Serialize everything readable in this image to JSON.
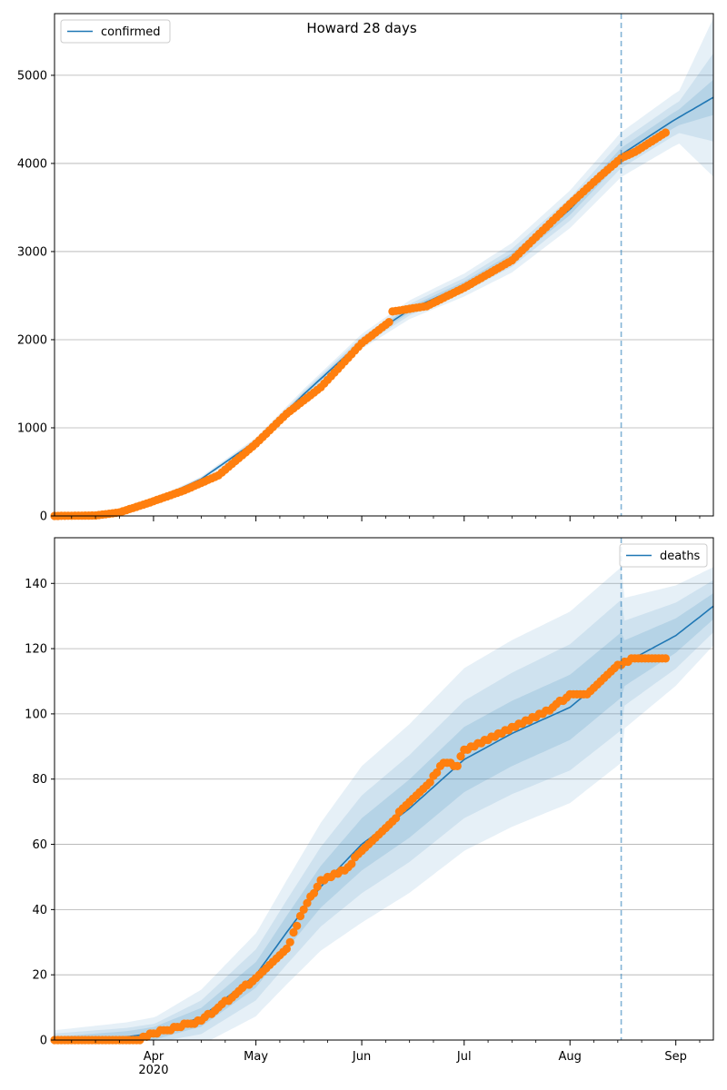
{
  "figure": {
    "title": "Howard 28 days"
  },
  "colors": {
    "model_line": "#1f77b4",
    "observed_points": "#ff7f0e",
    "band": "#1f77b4",
    "forecast_marker": "#1f77b4",
    "grid": "#b0b0b0"
  },
  "chart_data": [
    {
      "type": "line",
      "title": "Howard 28 days",
      "legend": {
        "label": "confirmed",
        "position": "top-left"
      },
      "x_axis": {
        "type": "date",
        "range": [
          "2020-03-03",
          "2020-09-12"
        ],
        "tick_labels": []
      },
      "y_axis": {
        "range": [
          0,
          5700
        ],
        "ticks": [
          0,
          1000,
          2000,
          3000,
          4000,
          5000
        ]
      },
      "grid": "horizontal",
      "forecast_start": "2020-08-16",
      "model": {
        "name": "confirmed",
        "knots": [
          [
            "2020-03-03",
            0
          ],
          [
            "2020-03-15",
            8
          ],
          [
            "2020-03-22",
            60
          ],
          [
            "2020-04-01",
            170
          ],
          [
            "2020-04-15",
            420
          ],
          [
            "2020-05-01",
            850
          ],
          [
            "2020-05-15",
            1380
          ],
          [
            "2020-06-01",
            1980
          ],
          [
            "2020-06-15",
            2340
          ],
          [
            "2020-07-01",
            2620
          ],
          [
            "2020-07-15",
            2930
          ],
          [
            "2020-08-01",
            3480
          ],
          [
            "2020-08-16",
            4100
          ],
          [
            "2020-08-31",
            4480
          ],
          [
            "2020-09-12",
            4750
          ]
        ],
        "bands": [
          {
            "spread": [
              [
                0,
                0
              ],
              [
                60,
                40
              ],
              [
                120,
                130
              ],
              [
                183,
                300
              ],
              [
                193,
                900
              ]
            ]
          },
          {
            "spread": [
              [
                0,
                0
              ],
              [
                60,
                25
              ],
              [
                120,
                80
              ],
              [
                183,
                180
              ],
              [
                193,
                500
              ]
            ]
          },
          {
            "spread": [
              [
                0,
                0
              ],
              [
                60,
                12
              ],
              [
                120,
                40
              ],
              [
                183,
                90
              ],
              [
                193,
                200
              ]
            ]
          }
        ]
      },
      "observed": {
        "name": "observed",
        "knots": [
          [
            "2020-03-03",
            0
          ],
          [
            "2020-03-15",
            5
          ],
          [
            "2020-03-22",
            40
          ],
          [
            "2020-03-30",
            140
          ],
          [
            "2020-04-10",
            290
          ],
          [
            "2020-04-20",
            460
          ],
          [
            "2020-05-01",
            820
          ],
          [
            "2020-05-10",
            1160
          ],
          [
            "2020-05-20",
            1460
          ],
          [
            "2020-06-01",
            1960
          ],
          [
            "2020-06-09",
            2200
          ],
          [
            "2020-06-10",
            2320
          ],
          [
            "2020-06-20",
            2380
          ],
          [
            "2020-07-01",
            2590
          ],
          [
            "2020-07-15",
            2900
          ],
          [
            "2020-08-01",
            3540
          ],
          [
            "2020-08-10",
            3860
          ],
          [
            "2020-08-16",
            4060
          ],
          [
            "2020-08-20",
            4130
          ],
          [
            "2020-08-29",
            4350
          ]
        ]
      }
    },
    {
      "type": "line",
      "legend": {
        "label": "deaths",
        "position": "top-right"
      },
      "x_axis": {
        "type": "date",
        "range": [
          "2020-03-03",
          "2020-09-12"
        ],
        "tick_labels": [
          {
            "date": "2020-04-01",
            "label": "Apr"
          },
          {
            "date": "2020-05-01",
            "label": "May"
          },
          {
            "date": "2020-06-01",
            "label": "Jun"
          },
          {
            "date": "2020-07-01",
            "label": "Jul"
          },
          {
            "date": "2020-08-01",
            "label": "Aug"
          },
          {
            "date": "2020-09-01",
            "label": "Sep"
          }
        ],
        "year_label": "2020"
      },
      "y_axis": {
        "range": [
          0,
          154
        ],
        "ticks": [
          0,
          20,
          40,
          60,
          80,
          100,
          120,
          140
        ]
      },
      "grid": "horizontal",
      "forecast_start": "2020-08-16",
      "model": {
        "name": "deaths",
        "knots": [
          [
            "2020-03-03",
            0
          ],
          [
            "2020-03-24",
            1
          ],
          [
            "2020-04-01",
            2
          ],
          [
            "2020-04-15",
            7
          ],
          [
            "2020-05-01",
            20
          ],
          [
            "2020-05-10",
            33
          ],
          [
            "2020-05-20",
            47
          ],
          [
            "2020-06-01",
            60
          ],
          [
            "2020-06-15",
            71
          ],
          [
            "2020-07-01",
            86
          ],
          [
            "2020-07-15",
            94
          ],
          [
            "2020-08-01",
            102
          ],
          [
            "2020-08-16",
            115
          ],
          [
            "2020-09-01",
            124
          ],
          [
            "2020-09-12",
            133
          ]
        ],
        "bands": [
          {
            "spread": [
              [
                0,
                3
              ],
              [
                30,
                5
              ],
              [
                60,
                13
              ],
              [
                90,
                24
              ],
              [
                120,
                28
              ],
              [
                166,
                30
              ],
              [
                167,
                20
              ],
              [
                193,
                12
              ]
            ]
          },
          {
            "spread": [
              [
                0,
                2
              ],
              [
                30,
                3
              ],
              [
                60,
                8
              ],
              [
                90,
                15
              ],
              [
                120,
                18
              ],
              [
                166,
                20
              ],
              [
                167,
                13
              ],
              [
                193,
                8
              ]
            ]
          },
          {
            "spread": [
              [
                0,
                1
              ],
              [
                30,
                2
              ],
              [
                60,
                4
              ],
              [
                90,
                8
              ],
              [
                120,
                10
              ],
              [
                166,
                10
              ],
              [
                167,
                7
              ],
              [
                193,
                4
              ]
            ]
          }
        ]
      },
      "observed": {
        "name": "observed",
        "knots": [
          [
            "2020-03-03",
            0
          ],
          [
            "2020-03-27",
            0
          ],
          [
            "2020-04-01",
            2
          ],
          [
            "2020-04-05",
            3
          ],
          [
            "2020-04-15",
            6
          ],
          [
            "2020-04-20",
            10
          ],
          [
            "2020-05-01",
            19
          ],
          [
            "2020-05-10",
            28
          ],
          [
            "2020-05-15",
            40
          ],
          [
            "2020-05-20",
            49
          ],
          [
            "2020-05-27",
            52
          ],
          [
            "2020-06-01",
            58
          ],
          [
            "2020-06-08",
            65
          ],
          [
            "2020-06-15",
            73
          ],
          [
            "2020-06-20",
            78
          ],
          [
            "2020-06-25",
            85
          ],
          [
            "2020-06-29",
            84
          ],
          [
            "2020-07-01",
            89
          ],
          [
            "2020-07-10",
            93
          ],
          [
            "2020-07-20",
            98
          ],
          [
            "2020-07-27",
            102
          ],
          [
            "2020-08-01",
            106
          ],
          [
            "2020-08-06",
            106
          ],
          [
            "2020-08-10",
            110
          ],
          [
            "2020-08-15",
            115
          ],
          [
            "2020-08-20",
            117
          ],
          [
            "2020-08-22",
            117
          ],
          [
            "2020-08-29",
            117
          ]
        ]
      }
    }
  ]
}
